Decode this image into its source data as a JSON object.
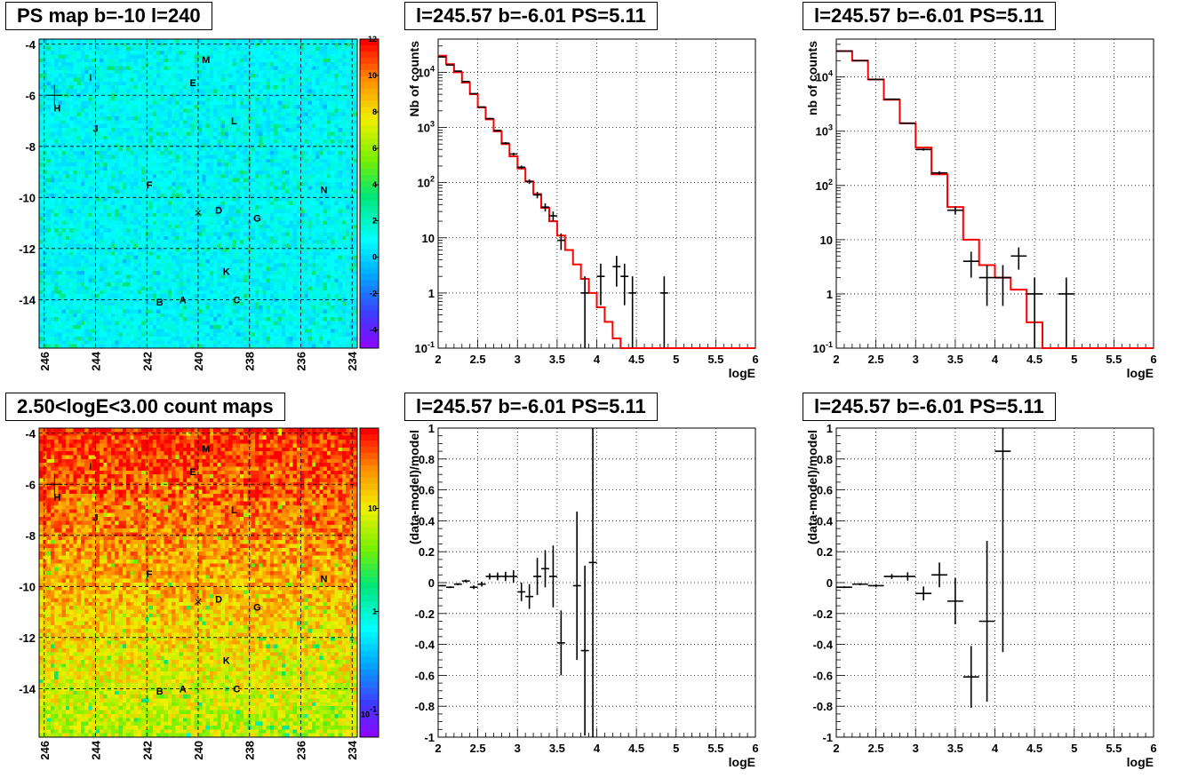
{
  "panels": {
    "ps_map": {
      "title": "PS map b=-10 l=240"
    },
    "count_map": {
      "title": "2.50<logE<3.00 count maps"
    },
    "spec1": {
      "title": "l=245.57 b=-6.01 PS=5.11"
    },
    "spec2": {
      "title": "l=245.57 b=-6.01 PS=5.11"
    },
    "res1": {
      "title": "l=245.57 b=-6.01 PS=5.11"
    },
    "res2": {
      "title": "l=245.57 b=-6.01 PS=5.11"
    }
  },
  "colors": {
    "model": "#ff0000",
    "data": "#000000",
    "grid": "#000000"
  },
  "chart_data": [
    {
      "type": "heatmap",
      "panel": "ps_map",
      "title": "PS map b=-10 l=240",
      "x_ticks": [
        "246",
        "244",
        "242",
        "240",
        "238",
        "236",
        "234"
      ],
      "x_tick_values": [
        246,
        244,
        242,
        240,
        238,
        236,
        234
      ],
      "y_ticks": [
        "-4",
        "-6",
        "-8",
        "-10",
        "-12",
        "-14"
      ],
      "y_tick_values": [
        -4,
        -6,
        -8,
        -10,
        -12,
        -14
      ],
      "xlim": [
        246.2,
        233.8
      ],
      "ylim": [
        -15.9,
        -3.8
      ],
      "colorbar_ticks": [
        "12",
        "10",
        "8",
        "6",
        "4",
        "2",
        "0",
        "-2",
        "-4"
      ],
      "colorbar_tick_values": [
        12,
        10,
        8,
        6,
        4,
        2,
        0,
        -2,
        -4
      ],
      "colorbar_range": [
        -5,
        12
      ],
      "typical_value": 0,
      "sources": [
        {
          "label": "M",
          "l": 239.7,
          "b": -4.6
        },
        {
          "label": "I",
          "l": 244.2,
          "b": -5.3
        },
        {
          "label": "E",
          "l": 240.2,
          "b": -5.5
        },
        {
          "label": "H",
          "l": 245.5,
          "b": -6.5
        },
        {
          "label": "L",
          "l": 238.6,
          "b": -7.0
        },
        {
          "label": "J",
          "l": 244.0,
          "b": -7.3
        },
        {
          "label": "F",
          "l": 241.9,
          "b": -9.5
        },
        {
          "label": "N",
          "l": 235.1,
          "b": -9.7
        },
        {
          "label": "D",
          "l": 239.2,
          "b": -10.5
        },
        {
          "label": "G",
          "l": 237.7,
          "b": -10.8
        },
        {
          "label": "K",
          "l": 238.9,
          "b": -12.9
        },
        {
          "label": "C",
          "l": 238.5,
          "b": -14.0
        },
        {
          "label": "B",
          "l": 241.5,
          "b": -14.1
        },
        {
          "label": "A",
          "l": 240.6,
          "b": -14.0
        }
      ],
      "markers": [
        {
          "shape": "cross",
          "l": 245.6,
          "b": -6.0
        },
        {
          "shape": "x",
          "l": 240.0,
          "b": -10.6
        }
      ]
    },
    {
      "type": "heatmap",
      "panel": "count_map",
      "title": "2.50<logE<3.00 count maps",
      "x_ticks": [
        "246",
        "244",
        "242",
        "240",
        "238",
        "236",
        "234"
      ],
      "x_tick_values": [
        246,
        244,
        242,
        240,
        238,
        236,
        234
      ],
      "y_ticks": [
        "-4",
        "-6",
        "-8",
        "-10",
        "-12",
        "-14"
      ],
      "y_tick_values": [
        -4,
        -6,
        -8,
        -10,
        -12,
        -14
      ],
      "xlim": [
        246.2,
        233.8
      ],
      "ylim": [
        -15.9,
        -3.8
      ],
      "colorbar_ticks": [
        "10",
        "1",
        "10-1"
      ],
      "colorbar_tick_values": [
        10,
        1,
        0.1
      ],
      "colorbar_scale": "log",
      "colorbar_range": [
        0.06,
        60
      ],
      "gradient": "counts increase toward b=-4 (red, ~20) and decrease toward b=-15 (yellow, ~3)",
      "sources": [
        {
          "label": "M",
          "l": 239.7,
          "b": -4.6
        },
        {
          "label": "I",
          "l": 244.2,
          "b": -5.3
        },
        {
          "label": "E",
          "l": 240.2,
          "b": -5.5
        },
        {
          "label": "H",
          "l": 245.5,
          "b": -6.5
        },
        {
          "label": "L",
          "l": 238.6,
          "b": -7.0
        },
        {
          "label": "J",
          "l": 244.0,
          "b": -7.3
        },
        {
          "label": "F",
          "l": 241.9,
          "b": -9.5
        },
        {
          "label": "N",
          "l": 235.1,
          "b": -9.7
        },
        {
          "label": "D",
          "l": 239.2,
          "b": -10.5
        },
        {
          "label": "G",
          "l": 237.7,
          "b": -10.8
        },
        {
          "label": "K",
          "l": 238.9,
          "b": -12.9
        },
        {
          "label": "C",
          "l": 238.5,
          "b": -14.0
        },
        {
          "label": "B",
          "l": 241.5,
          "b": -14.1
        },
        {
          "label": "A",
          "l": 240.6,
          "b": -14.0
        }
      ],
      "markers": [
        {
          "shape": "cross",
          "l": 245.6,
          "b": -6.0
        },
        {
          "shape": "x",
          "l": 240.0,
          "b": -10.6
        }
      ]
    },
    {
      "type": "line",
      "panel": "spec1",
      "title": "l=245.57 b=-6.01 PS=5.11",
      "xlabel": "logE",
      "ylabel": "Nb of counts",
      "xlim": [
        2,
        6
      ],
      "ylim": [
        0.1,
        40000
      ],
      "yscale": "log",
      "x_ticks": [
        "2",
        "2.5",
        "3",
        "3.5",
        "4",
        "4.5",
        "5",
        "5.5",
        "6"
      ],
      "y_ticks": [
        "10-1",
        "1",
        "10",
        "102",
        "103",
        "104"
      ],
      "grid": true,
      "series": [
        {
          "style": "step",
          "color": "#ff0000",
          "bin_width": 0.1,
          "x": [
            2.0,
            2.1,
            2.2,
            2.3,
            2.4,
            2.5,
            2.6,
            2.7,
            2.8,
            2.9,
            3.0,
            3.1,
            3.2,
            3.3,
            3.4,
            3.5,
            3.6,
            3.7,
            3.8,
            3.9,
            4.0,
            4.1,
            4.2,
            4.3,
            4.4,
            4.5,
            4.6,
            4.7,
            4.8,
            4.9,
            5.0,
            5.1,
            5.2,
            5.3,
            5.4,
            5.5,
            5.6,
            5.7,
            5.8,
            5.9
          ],
          "values": [
            20000,
            14000,
            10000,
            6500,
            4000,
            2300,
            1400,
            850,
            500,
            300,
            180,
            105,
            62,
            35,
            20,
            11,
            6,
            3.3,
            1.8,
            1.0,
            0.55,
            0.3,
            0.15,
            0.08,
            0.1,
            0.1,
            0.1,
            0.1,
            0.1,
            0.1,
            0.1,
            0.1,
            0.1,
            0.1,
            0.1,
            0.1,
            0.1,
            0.1,
            0.1,
            0.1
          ]
        },
        {
          "style": "errorbar",
          "color": "#000000",
          "points": [
            {
              "x": 2.05,
              "y": 19000,
              "err": 140
            },
            {
              "x": 2.15,
              "y": 13500,
              "err": 115
            },
            {
              "x": 2.25,
              "y": 10500,
              "err": 100
            },
            {
              "x": 2.35,
              "y": 6800,
              "err": 80
            },
            {
              "x": 2.45,
              "y": 4100,
              "err": 64
            },
            {
              "x": 2.55,
              "y": 2350,
              "err": 48
            },
            {
              "x": 2.65,
              "y": 1450,
              "err": 38
            },
            {
              "x": 2.75,
              "y": 880,
              "err": 30
            },
            {
              "x": 2.85,
              "y": 520,
              "err": 23
            },
            {
              "x": 2.95,
              "y": 330,
              "err": 18
            },
            {
              "x": 3.05,
              "y": 190,
              "err": 14
            },
            {
              "x": 3.15,
              "y": 105,
              "err": 10
            },
            {
              "x": 3.25,
              "y": 60,
              "err": 8
            },
            {
              "x": 3.35,
              "y": 36,
              "err": 6
            },
            {
              "x": 3.45,
              "y": 25,
              "err": 5
            },
            {
              "x": 3.55,
              "y": 9,
              "err": 3
            },
            {
              "x": 3.85,
              "y": 1,
              "err": 1
            },
            {
              "x": 4.05,
              "y": 2,
              "err": 1.4
            },
            {
              "x": 4.25,
              "y": 3,
              "err": 1.7
            },
            {
              "x": 4.35,
              "y": 2,
              "err": 1.4
            },
            {
              "x": 4.45,
              "y": 1,
              "err": 1
            },
            {
              "x": 4.85,
              "y": 1,
              "err": 1
            }
          ]
        }
      ]
    },
    {
      "type": "line",
      "panel": "spec2",
      "title": "l=245.57 b=-6.01 PS=5.11",
      "xlabel": "logE",
      "ylabel": "nb of counts",
      "xlim": [
        2,
        6
      ],
      "ylim": [
        0.1,
        50000
      ],
      "yscale": "log",
      "x_ticks": [
        "2",
        "2.5",
        "3",
        "3.5",
        "4",
        "4.5",
        "5",
        "5.5",
        "6"
      ],
      "y_ticks": [
        "10-1",
        "1",
        "10",
        "102",
        "103",
        "104"
      ],
      "grid": true,
      "series": [
        {
          "style": "step",
          "color": "#ff0000",
          "bin_width": 0.2,
          "x": [
            2.0,
            2.2,
            2.4,
            2.6,
            2.8,
            3.0,
            3.2,
            3.4,
            3.6,
            3.8,
            4.0,
            4.2,
            4.4,
            4.6,
            4.8,
            5.0,
            5.2,
            5.4,
            5.6,
            5.8
          ],
          "values": [
            30000,
            20000,
            9000,
            3800,
            1400,
            500,
            160,
            40,
            10,
            3.4,
            2.0,
            1.2,
            0.3,
            0.1,
            0.1,
            0.1,
            0.1,
            0.1,
            0.1,
            0.1
          ]
        },
        {
          "style": "errorbar",
          "color": "#000000",
          "points": [
            {
              "x": 2.1,
              "y": 30000,
              "err": 170
            },
            {
              "x": 2.3,
              "y": 20000,
              "err": 140
            },
            {
              "x": 2.5,
              "y": 9000,
              "err": 95
            },
            {
              "x": 2.7,
              "y": 3900,
              "err": 62
            },
            {
              "x": 2.9,
              "y": 1400,
              "err": 37
            },
            {
              "x": 3.1,
              "y": 460,
              "err": 21
            },
            {
              "x": 3.3,
              "y": 170,
              "err": 13
            },
            {
              "x": 3.5,
              "y": 35,
              "err": 6
            },
            {
              "x": 3.7,
              "y": 4,
              "err": 2
            },
            {
              "x": 3.9,
              "y": 2,
              "err": 1.4
            },
            {
              "x": 4.1,
              "y": 2,
              "err": 1.4
            },
            {
              "x": 4.3,
              "y": 5,
              "err": 2.2
            },
            {
              "x": 4.5,
              "y": 1,
              "err": 1
            },
            {
              "x": 4.9,
              "y": 1,
              "err": 1
            }
          ]
        }
      ]
    },
    {
      "type": "scatter",
      "panel": "res1",
      "title": "l=245.57 b=-6.01 PS=5.11",
      "xlabel": "logE",
      "ylabel": "(data-model)/model",
      "xlim": [
        2,
        6
      ],
      "ylim": [
        -1,
        1
      ],
      "x_ticks": [
        "2",
        "2.5",
        "3",
        "3.5",
        "4",
        "4.5",
        "5",
        "5.5",
        "6"
      ],
      "y_ticks": [
        "1",
        "0.8",
        "0.6",
        "0.4",
        "0.2",
        "0",
        "-0.2",
        "-0.4",
        "-0.6",
        "-0.8",
        "-1"
      ],
      "grid": true,
      "series": [
        {
          "style": "errorbar",
          "color": "#000000",
          "bin_width": 0.1,
          "points": [
            {
              "x": 2.05,
              "y": -0.02,
              "err": 0.005
            },
            {
              "x": 2.15,
              "y": -0.03,
              "err": 0.006
            },
            {
              "x": 2.25,
              "y": -0.01,
              "err": 0.007
            },
            {
              "x": 2.35,
              "y": 0.01,
              "err": 0.009
            },
            {
              "x": 2.45,
              "y": -0.03,
              "err": 0.012
            },
            {
              "x": 2.55,
              "y": -0.01,
              "err": 0.016
            },
            {
              "x": 2.65,
              "y": 0.04,
              "err": 0.02
            },
            {
              "x": 2.75,
              "y": 0.04,
              "err": 0.025
            },
            {
              "x": 2.85,
              "y": 0.04,
              "err": 0.03
            },
            {
              "x": 2.95,
              "y": 0.04,
              "err": 0.04
            },
            {
              "x": 3.05,
              "y": -0.06,
              "err": 0.06
            },
            {
              "x": 3.15,
              "y": -0.09,
              "err": 0.08
            },
            {
              "x": 3.25,
              "y": 0.04,
              "err": 0.12
            },
            {
              "x": 3.35,
              "y": 0.09,
              "err": 0.12
            },
            {
              "x": 3.45,
              "y": 0.04,
              "err": 0.2
            },
            {
              "x": 3.55,
              "y": -0.39,
              "err": 0.21
            },
            {
              "x": 3.75,
              "y": -0.02,
              "err": 0.48
            },
            {
              "x": 3.85,
              "y": -0.44,
              "err": 0.55
            },
            {
              "x": 3.95,
              "y": 0.13,
              "err": 1.2
            }
          ]
        }
      ]
    },
    {
      "type": "scatter",
      "panel": "res2",
      "title": "l=245.57 b=-6.01 PS=5.11",
      "xlabel": "logE",
      "ylabel": "(data-model)/model",
      "xlim": [
        2,
        6
      ],
      "ylim": [
        -1,
        1
      ],
      "x_ticks": [
        "2",
        "2.5",
        "3",
        "3.5",
        "4",
        "4.5",
        "5",
        "5.5",
        "6"
      ],
      "y_ticks": [
        "1",
        "0.8",
        "0.6",
        "0.4",
        "0.2",
        "0",
        "-0.2",
        "-0.4",
        "-0.6",
        "-0.8",
        "-1"
      ],
      "grid": true,
      "series": [
        {
          "style": "errorbar",
          "color": "#000000",
          "bin_width": 0.2,
          "points": [
            {
              "x": 2.1,
              "y": -0.03,
              "err": 0.006
            },
            {
              "x": 2.3,
              "y": -0.01,
              "err": 0.007
            },
            {
              "x": 2.5,
              "y": -0.02,
              "err": 0.01
            },
            {
              "x": 2.7,
              "y": 0.04,
              "err": 0.016
            },
            {
              "x": 2.9,
              "y": 0.04,
              "err": 0.027
            },
            {
              "x": 3.1,
              "y": -0.07,
              "err": 0.045
            },
            {
              "x": 3.3,
              "y": 0.05,
              "err": 0.08
            },
            {
              "x": 3.5,
              "y": -0.12,
              "err": 0.15
            },
            {
              "x": 3.7,
              "y": -0.61,
              "err": 0.2
            },
            {
              "x": 3.9,
              "y": -0.25,
              "err": 0.52
            },
            {
              "x": 4.1,
              "y": 0.85,
              "err": 1.3
            }
          ]
        }
      ]
    }
  ]
}
